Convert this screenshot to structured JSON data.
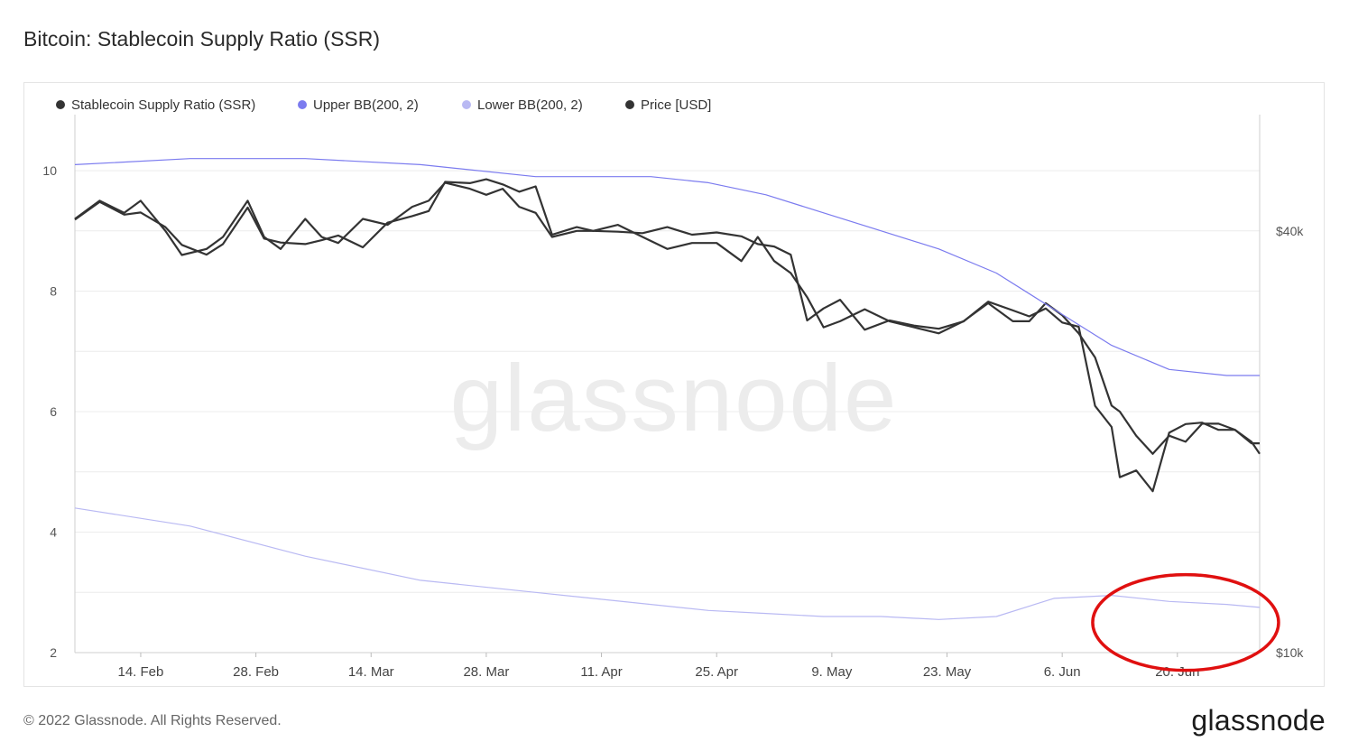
{
  "header": {
    "title": "Bitcoin: Stablecoin Supply Ratio (SSR)"
  },
  "footer": {
    "copyright": "© 2022 Glassnode. All Rights Reserved.",
    "brand": "glassnode"
  },
  "watermark": "glassnode",
  "colors": {
    "ssr": "#333333",
    "upper": "#7b7bef",
    "lower": "#b9b9f3",
    "price": "#333333",
    "highlight": "#e01010"
  },
  "chart_data": {
    "type": "line",
    "title": "Bitcoin: Stablecoin Supply Ratio (SSR)",
    "legend": [
      "Stablecoin Supply Ratio (SSR)",
      "Upper BB(200, 2)",
      "Lower BB(200, 2)",
      "Price [USD]"
    ],
    "legend_position": "top-left",
    "x_ticks": [
      "14. Feb",
      "28. Feb",
      "14. Mar",
      "28. Mar",
      "11. Apr",
      "25. Apr",
      "9. May",
      "23. May",
      "6. Jun",
      "20. Jun"
    ],
    "x_range": [
      "2022-02-06",
      "2022-06-30"
    ],
    "y_left": {
      "range": [
        2,
        10.9
      ],
      "ticks": [
        2,
        4,
        6,
        8,
        10
      ],
      "tick_labels": [
        "2",
        "4",
        "6",
        "8",
        "10"
      ]
    },
    "y_right": {
      "scale": "log",
      "ticks": [
        10000,
        40000
      ],
      "tick_labels": [
        "$10k",
        "$40k"
      ]
    },
    "grid": true,
    "series": [
      {
        "name": "Stablecoin Supply Ratio (SSR)",
        "axis": "left",
        "x": [
          "2022-02-06",
          "2022-02-09",
          "2022-02-12",
          "2022-02-14",
          "2022-02-17",
          "2022-02-19",
          "2022-02-22",
          "2022-02-24",
          "2022-02-27",
          "2022-03-01",
          "2022-03-03",
          "2022-03-06",
          "2022-03-08",
          "2022-03-10",
          "2022-03-13",
          "2022-03-16",
          "2022-03-19",
          "2022-03-21",
          "2022-03-23",
          "2022-03-26",
          "2022-03-28",
          "2022-03-30",
          "2022-04-01",
          "2022-04-03",
          "2022-04-05",
          "2022-04-08",
          "2022-04-10",
          "2022-04-13",
          "2022-04-16",
          "2022-04-19",
          "2022-04-22",
          "2022-04-25",
          "2022-04-28",
          "2022-04-30",
          "2022-05-02",
          "2022-05-04",
          "2022-05-06",
          "2022-05-08",
          "2022-05-10",
          "2022-05-13",
          "2022-05-16",
          "2022-05-19",
          "2022-05-22",
          "2022-05-25",
          "2022-05-28",
          "2022-05-31",
          "2022-06-02",
          "2022-06-04",
          "2022-06-06",
          "2022-06-08",
          "2022-06-10",
          "2022-06-12",
          "2022-06-13",
          "2022-06-15",
          "2022-06-17",
          "2022-06-19",
          "2022-06-21",
          "2022-06-23",
          "2022-06-25",
          "2022-06-27",
          "2022-06-29",
          "2022-06-30"
        ],
        "y": [
          9.2,
          9.5,
          9.3,
          9.5,
          9.0,
          8.6,
          8.7,
          8.9,
          9.5,
          8.9,
          8.7,
          9.2,
          8.9,
          8.8,
          9.2,
          9.1,
          9.4,
          9.5,
          9.8,
          9.7,
          9.6,
          9.7,
          9.4,
          9.3,
          8.9,
          9.0,
          9.0,
          9.1,
          8.9,
          8.7,
          8.8,
          8.8,
          8.5,
          8.9,
          8.5,
          8.3,
          7.9,
          7.4,
          7.5,
          7.7,
          7.5,
          7.4,
          7.3,
          7.5,
          7.8,
          7.5,
          7.5,
          7.8,
          7.6,
          7.3,
          6.9,
          6.1,
          6.0,
          5.6,
          5.3,
          5.6,
          5.5,
          5.8,
          5.8,
          5.7,
          5.5,
          5.3
        ]
      },
      {
        "name": "Upper BB(200, 2)",
        "axis": "left",
        "x": [
          "2022-02-06",
          "2022-02-20",
          "2022-03-06",
          "2022-03-20",
          "2022-04-03",
          "2022-04-17",
          "2022-04-24",
          "2022-05-01",
          "2022-05-08",
          "2022-05-15",
          "2022-05-22",
          "2022-05-29",
          "2022-06-05",
          "2022-06-12",
          "2022-06-19",
          "2022-06-26",
          "2022-06-30"
        ],
        "y": [
          10.1,
          10.2,
          10.2,
          10.1,
          9.9,
          9.9,
          9.8,
          9.6,
          9.3,
          9.0,
          8.7,
          8.3,
          7.7,
          7.1,
          6.7,
          6.6,
          6.6
        ]
      },
      {
        "name": "Lower BB(200, 2)",
        "axis": "left",
        "x": [
          "2022-02-06",
          "2022-02-20",
          "2022-03-06",
          "2022-03-20",
          "2022-04-03",
          "2022-04-17",
          "2022-04-24",
          "2022-05-01",
          "2022-05-08",
          "2022-05-15",
          "2022-05-22",
          "2022-05-29",
          "2022-06-05",
          "2022-06-12",
          "2022-06-19",
          "2022-06-26",
          "2022-06-30"
        ],
        "y": [
          4.4,
          4.1,
          3.6,
          3.2,
          3.0,
          2.8,
          2.7,
          2.65,
          2.6,
          2.6,
          2.55,
          2.6,
          2.9,
          2.95,
          2.85,
          2.8,
          2.75
        ]
      },
      {
        "name": "Price [USD]",
        "axis": "right",
        "x": [
          "2022-02-06",
          "2022-02-09",
          "2022-02-12",
          "2022-02-14",
          "2022-02-17",
          "2022-02-19",
          "2022-02-22",
          "2022-02-24",
          "2022-02-27",
          "2022-03-01",
          "2022-03-03",
          "2022-03-06",
          "2022-03-08",
          "2022-03-10",
          "2022-03-13",
          "2022-03-16",
          "2022-03-19",
          "2022-03-21",
          "2022-03-23",
          "2022-03-26",
          "2022-03-28",
          "2022-03-30",
          "2022-04-01",
          "2022-04-03",
          "2022-04-05",
          "2022-04-08",
          "2022-04-10",
          "2022-04-13",
          "2022-04-16",
          "2022-04-19",
          "2022-04-22",
          "2022-04-25",
          "2022-04-28",
          "2022-04-30",
          "2022-05-02",
          "2022-05-04",
          "2022-05-06",
          "2022-05-08",
          "2022-05-10",
          "2022-05-13",
          "2022-05-16",
          "2022-05-19",
          "2022-05-22",
          "2022-05-25",
          "2022-05-28",
          "2022-05-31",
          "2022-06-02",
          "2022-06-04",
          "2022-06-06",
          "2022-06-08",
          "2022-06-10",
          "2022-06-12",
          "2022-06-13",
          "2022-06-15",
          "2022-06-17",
          "2022-06-19",
          "2022-06-21",
          "2022-06-23",
          "2022-06-25",
          "2022-06-27",
          "2022-06-29",
          "2022-06-30"
        ],
        "y": [
          41500,
          44000,
          42200,
          42500,
          40500,
          38200,
          37000,
          38300,
          43200,
          39000,
          38500,
          38300,
          38800,
          39400,
          37900,
          41100,
          42000,
          42700,
          47000,
          46800,
          47400,
          46600,
          45500,
          46300,
          39500,
          40500,
          40000,
          39900,
          39700,
          40500,
          39500,
          39800,
          39300,
          38300,
          38000,
          37000,
          29800,
          31000,
          31900,
          28900,
          29800,
          29300,
          29000,
          29700,
          31700,
          30800,
          30200,
          31000,
          29600,
          29200,
          22500,
          21000,
          17800,
          18200,
          17000,
          20600,
          21200,
          21300,
          20800,
          20800,
          19900,
          19900
        ]
      }
    ],
    "annotation": "red ellipse around late June lows"
  }
}
